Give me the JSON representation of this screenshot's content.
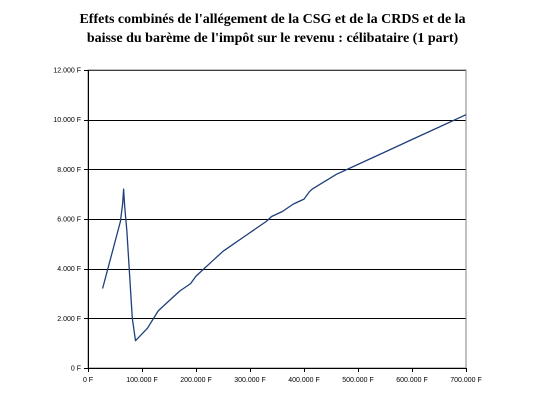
{
  "chart_data": {
    "type": "line",
    "title_lines": [
      "Effets combinés de l'allégement de la CSG et de la CRDS et de la",
      "baisse du barème de l'impôt sur le revenu : célibataire (1 part)"
    ],
    "xlabel": "",
    "ylabel": "",
    "xlim": [
      0,
      700000
    ],
    "ylim": [
      0,
      12000
    ],
    "x_ticks": [
      0,
      100000,
      200000,
      300000,
      400000,
      500000,
      600000,
      700000
    ],
    "x_tick_labels": [
      "0 F",
      "100.000 F",
      "200.000 F",
      "300.000 F",
      "400.000 F",
      "500.000 F",
      "600.000 F",
      "700.000 F"
    ],
    "y_ticks": [
      0,
      2000,
      4000,
      6000,
      8000,
      10000,
      12000
    ],
    "y_tick_labels": [
      "0 F",
      "2.000 F",
      "4.000 F",
      "6.000 F",
      "8.000 F",
      "10.000 F",
      "12.000 F"
    ],
    "grid": "horizontal",
    "legend": "none",
    "line_color": "#1f3f7a",
    "series": [
      {
        "x": [
          27000,
          60000,
          64000,
          66000,
          68000,
          72000,
          82000,
          88000,
          110000,
          130000,
          150000,
          170000,
          190000,
          200000,
          210000,
          230000,
          250000,
          270000,
          290000,
          310000,
          330000,
          340000,
          360000,
          380000,
          400000,
          410000,
          415000,
          430000,
          460000,
          500000,
          550000,
          600000,
          650000,
          700000
        ],
        "y": [
          3200,
          5900,
          6600,
          7200,
          6500,
          5500,
          2000,
          1100,
          1600,
          2300,
          2700,
          3100,
          3400,
          3700,
          3900,
          4300,
          4700,
          5000,
          5300,
          5600,
          5900,
          6100,
          6300,
          6600,
          6800,
          7100,
          7200,
          7400,
          7800,
          8200,
          8700,
          9200,
          9700,
          10200
        ]
      }
    ]
  }
}
